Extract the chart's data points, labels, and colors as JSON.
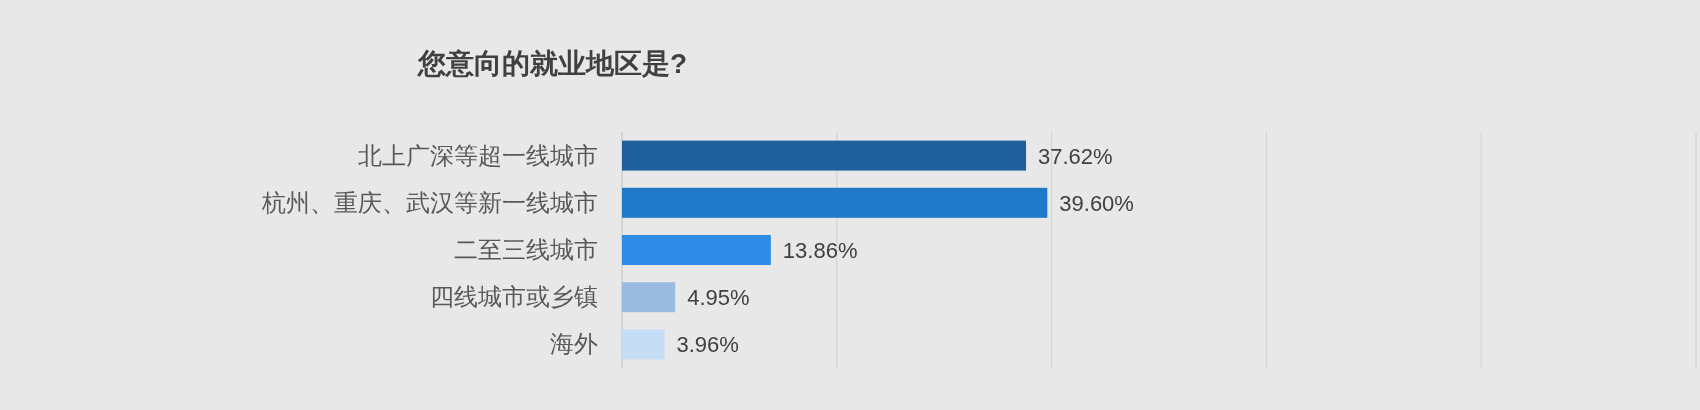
{
  "chart_data": {
    "type": "bar",
    "orientation": "horizontal",
    "title": "您意向的就业地区是?",
    "categories": [
      "北上广深等超一线城市",
      "杭州、重庆、武汉等新一线城市",
      "二至三线城市",
      "四线城市或乡镇",
      "海外"
    ],
    "values": [
      37.62,
      39.6,
      13.86,
      4.95,
      3.96
    ],
    "colors": [
      "#1f5f9c",
      "#1f78c8",
      "#2e8ce6",
      "#99bbdf",
      "#c5ddf5"
    ],
    "value_labels": [
      "37.62%",
      "39.60%",
      "13.86%",
      "4.95%",
      "3.96%"
    ],
    "xlim": [
      0,
      100
    ],
    "xticks": [
      {
        "value": 0,
        "label": null
      },
      {
        "value": 20,
        "label": null
      },
      {
        "value": 40,
        "label": null
      },
      {
        "value": 60,
        "label": null
      },
      {
        "value": 80,
        "label": null
      },
      {
        "value": 100,
        "label": null
      }
    ],
    "grid": "x",
    "tick_labels": "y"
  }
}
